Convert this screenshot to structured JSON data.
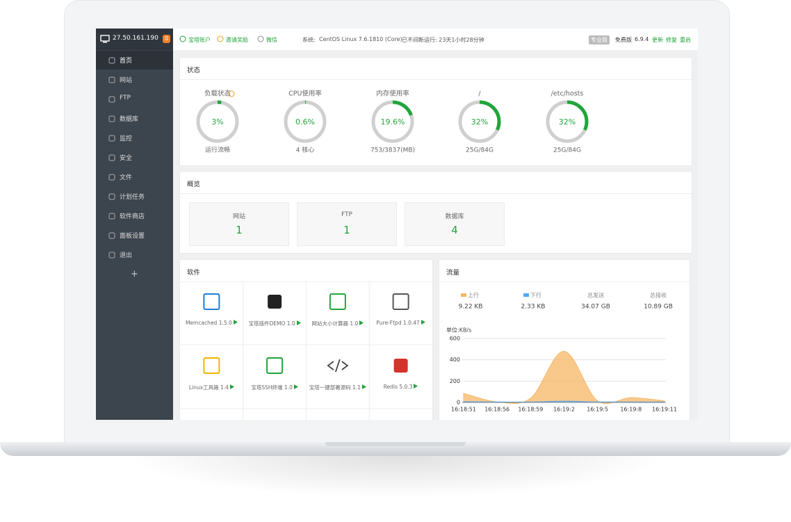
{
  "sidebar": {
    "ip": "27.50.161.190",
    "badge": "0",
    "menu": [
      "首页",
      "网站",
      "FTP",
      "数据库",
      "监控",
      "安全",
      "文件",
      "计划任务",
      "软件商店",
      "面板设置",
      "退出"
    ],
    "add": "+"
  },
  "topbar": {
    "links": [
      "宝塔账户",
      "邀请奖励",
      "微信"
    ],
    "system_label": "系统:",
    "system": "CentOS Linux 7.6.1810 (Core)",
    "uptime": "已不间断运行: 23天1小时28分钟",
    "edition_badge": "专业版",
    "edition": "免费版",
    "version": "6.9.4",
    "actions": [
      "更新",
      "修复",
      "重启"
    ]
  },
  "status": {
    "title": "状态",
    "gauges": [
      {
        "title": "负载状态",
        "value": 3,
        "value_label": "3%",
        "detail": "运行流畅"
      },
      {
        "title": "CPU使用率",
        "value": 0.6,
        "value_label": "0.6%",
        "detail": "4 核心"
      },
      {
        "title": "内存使用率",
        "value": 19.6,
        "value_label": "19.6%",
        "detail": "753/3837(MB)"
      },
      {
        "title": "/",
        "value": 32,
        "value_label": "32%",
        "detail": "25G/84G"
      },
      {
        "title": "/etc/hosts",
        "value": 32,
        "value_label": "32%",
        "detail": "25G/84G"
      }
    ]
  },
  "overview": {
    "title": "概览",
    "items": [
      {
        "label": "网站",
        "value": 1
      },
      {
        "label": "FTP",
        "value": 1
      },
      {
        "label": "数据库",
        "value": 4
      }
    ]
  },
  "software": {
    "title": "软件",
    "items": [
      "Memcached 1.5.0",
      "宝塔插件DEMO 1.0",
      "网站大小计算器 1.0",
      "Pure-Ftpd 1.0.47",
      "Linux工具箱 1.4",
      "宝塔SSH终端 1.0",
      "宝塔一键部署源码 1.1",
      "Redis 5.0.3"
    ]
  },
  "traffic": {
    "title": "流量",
    "series_current": [
      "9.22 KB",
      "2.33 KB"
    ],
    "totals": [
      {
        "label": "总发送",
        "value": "34.07 GB"
      },
      {
        "label": "总接收",
        "value": "10.89 GB"
      }
    ],
    "chart": {
      "type": "area",
      "unit": "单位:KB/s",
      "x": [
        "16:18:51",
        "16:18:56",
        "16:18:59",
        "16:19:2",
        "16:19:5",
        "16:19:8",
        "16:19:11"
      ],
      "ylim": [
        0,
        600
      ],
      "yticks": [
        0,
        200,
        400,
        600
      ],
      "grid": true,
      "series": [
        {
          "name": "上行",
          "color": "#f7b766",
          "values": [
            85,
            5,
            40,
            480,
            15,
            45,
            15
          ]
        },
        {
          "name": "下行",
          "color": "#52a9f5",
          "values": [
            8,
            5,
            5,
            12,
            5,
            5,
            5
          ]
        }
      ]
    }
  }
}
